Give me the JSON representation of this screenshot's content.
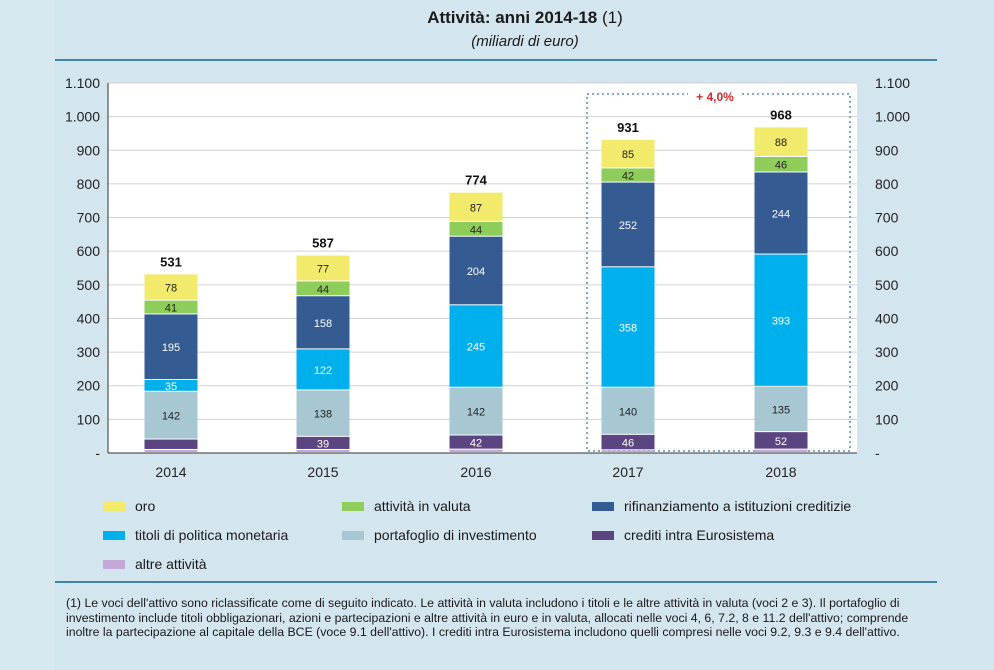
{
  "title_bold": "Attività: anni 2014-18",
  "title_note": "(1)",
  "subtitle": "(miliardi di euro)",
  "chart_data": {
    "type": "bar",
    "stacked": true,
    "categories": [
      "2014",
      "2015",
      "2016",
      "2017",
      "2018"
    ],
    "ylim": [
      0,
      1100
    ],
    "yticks": [
      "-",
      "100",
      "200",
      "300",
      "400",
      "500",
      "600",
      "700",
      "800",
      "900",
      "1.000",
      "1.100"
    ],
    "grid": true,
    "legend_position": "bottom",
    "totals": [
      "531",
      "587",
      "774",
      "931",
      "968"
    ],
    "annotation": "+ 4,0%",
    "series": [
      {
        "name": "altre attività",
        "color": "#c3a9d6",
        "values": [
          9,
          9,
          10,
          8,
          10
        ],
        "labels": [
          "",
          "",
          "",
          "",
          ""
        ]
      },
      {
        "name": "crediti intra Eurosistema",
        "color": "#5b4580",
        "values": [
          31,
          39,
          42,
          46,
          52
        ],
        "labels": [
          "",
          "39",
          "42",
          "46",
          "52"
        ]
      },
      {
        "name": "portafoglio di investimento",
        "color": "#a7c8d3",
        "values": [
          142,
          138,
          142,
          140,
          135
        ],
        "labels": [
          "142",
          "138",
          "142",
          "140",
          "135"
        ]
      },
      {
        "name": "titoli di politica monetaria",
        "color": "#00b0ed",
        "values": [
          35,
          122,
          245,
          358,
          393
        ],
        "labels": [
          "35",
          "122",
          "245",
          "358",
          "393"
        ]
      },
      {
        "name": "rifinanziamento a istituzioni creditizie",
        "color": "#345c93",
        "values": [
          195,
          158,
          204,
          252,
          244
        ],
        "labels": [
          "195",
          "158",
          "204",
          "252",
          "244"
        ]
      },
      {
        "name": "attività in valuta",
        "color": "#8fcd5a",
        "values": [
          41,
          44,
          44,
          42,
          46
        ],
        "labels": [
          "41",
          "44",
          "44",
          "42",
          "46"
        ]
      },
      {
        "name": "oro",
        "color": "#f2ea6a",
        "values": [
          78,
          77,
          87,
          85,
          88
        ],
        "labels": [
          "78",
          "77",
          "87",
          "85",
          "88"
        ]
      }
    ]
  },
  "legend": [
    {
      "label": "oro",
      "color": "#f2ea6a"
    },
    {
      "label": "attività in valuta",
      "color": "#8fcd5a"
    },
    {
      "label": "rifinanziamento a istituzioni creditizie",
      "color": "#345c93"
    },
    {
      "label": "titoli di politica monetaria",
      "color": "#00b0ed"
    },
    {
      "label": "portafoglio di investimento",
      "color": "#a7c8d3"
    },
    {
      "label": "crediti intra Eurosistema",
      "color": "#5b4580"
    },
    {
      "label": "altre attività",
      "color": "#c3a9d6"
    }
  ],
  "footnote": "(1) Le voci dell'attivo sono riclassificate come di seguito indicato. Le attività in valuta includono i titoli e le altre attività in valuta (voci 2 e 3). Il portafoglio di investimento include titoli obbligazionari, azioni e partecipazioni e altre attività in euro e in valuta, allocati nelle voci 4, 6, 7.2, 8 e 11.2 dell'attivo; comprende inoltre la partecipazione al capitale della BCE (voce 9.1 dell'attivo). I crediti intra Eurosistema includono quelli compresi nelle voci 9.2, 9.3 e 9.4 dell'attivo."
}
